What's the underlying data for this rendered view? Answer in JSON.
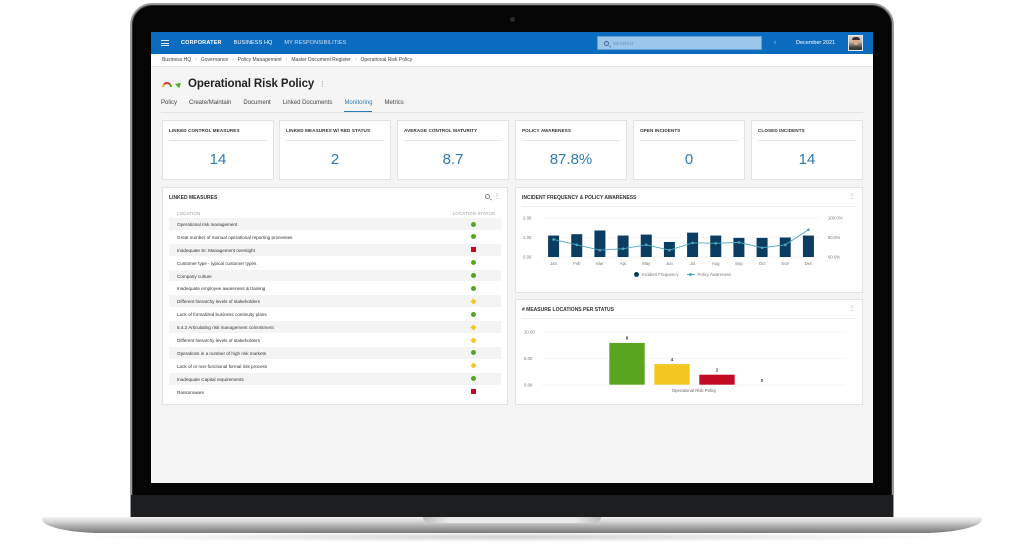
{
  "nav": {
    "brand": "CORPORATER",
    "links": [
      "BUSINESS HQ",
      "MY RESPONSIBILITIES"
    ],
    "search_placeholder": "SEARCH",
    "period": "December 2021",
    "prev_label": "‹",
    "next_label": "›"
  },
  "breadcrumb": [
    "Business HQ",
    "Governance",
    "Policy Management",
    "Master Document Register",
    "Operational Risk Policy"
  ],
  "page": {
    "title": "Operational Risk Policy",
    "menu_glyph": "⋮"
  },
  "tabs": [
    {
      "label": "Policy",
      "active": false
    },
    {
      "label": "Create/Maintain",
      "active": false
    },
    {
      "label": "Document",
      "active": false
    },
    {
      "label": "Linked Documents",
      "active": false
    },
    {
      "label": "Monitoring",
      "active": true
    },
    {
      "label": "Metrics",
      "active": false
    }
  ],
  "kpis": [
    {
      "label": "LINKED CONTROL MEASURES",
      "value": "14"
    },
    {
      "label": "LINKED MEASURES W/ RED STATUS",
      "value": "2"
    },
    {
      "label": "AVERAGE CONTROL MATURITY",
      "value": "8.7"
    },
    {
      "label": "POLICY AWARENESS",
      "value": "87.8%"
    },
    {
      "label": "OPEN INCIDENTS",
      "value": "0"
    },
    {
      "label": "CLOSED INCIDENTS",
      "value": "14"
    }
  ],
  "linked_measures": {
    "title": "LINKED MEASURES",
    "col_location": "LOCATION",
    "col_status": "LOCATION STATUS",
    "rows": [
      {
        "location": "Operational risk management",
        "status": "green"
      },
      {
        "location": "Great number of manual operational reporting processes",
        "status": "green"
      },
      {
        "location": "Inadequate Sr. Management oversight",
        "status": "red"
      },
      {
        "location": "Customer type - typical customer types",
        "status": "green"
      },
      {
        "location": "Company culture",
        "status": "green"
      },
      {
        "location": "Inadequate employee awareness & training",
        "status": "green"
      },
      {
        "location": "Different hierarchy levels of stakeholders",
        "status": "yellow"
      },
      {
        "location": "Lack of formalized business continuity plans",
        "status": "green"
      },
      {
        "location": "5.4.2 Articulating risk management commitment",
        "status": "yellow"
      },
      {
        "location": "Different hierarchy levels of stakeholders",
        "status": "yellow"
      },
      {
        "location": "Operations in a number of high risk markets",
        "status": "green"
      },
      {
        "location": "Lack of or non-functional formal risk process",
        "status": "yellow"
      },
      {
        "location": "Inadequate Capital requirements",
        "status": "green"
      },
      {
        "location": "Ransomware",
        "status": "red"
      }
    ]
  },
  "incident_panel": {
    "title": "INCIDENT FREQUENCY & POLICY AWARENESS",
    "legend": [
      "Incident Frequency",
      "Policy Awareness"
    ]
  },
  "status_panel": {
    "title": "# MEASURE LOCATIONS PER STATUS",
    "category_label": "Operational Risk Policy"
  },
  "colors": {
    "nav_blue": "#0b6cbf",
    "kpi_value": "#2e7ab6",
    "bar_navy": "#0b3d62",
    "line_teal": "#4ea7bf",
    "status_green": "#5aa520",
    "status_yellow": "#f3c622",
    "status_red": "#c30a25"
  },
  "chart_data": [
    {
      "type": "bar",
      "title": "INCIDENT FREQUENCY & POLICY AWARENESS",
      "categories": [
        "Jan",
        "Feb",
        "Mar",
        "Apr",
        "May",
        "Jun",
        "Jul",
        "Aug",
        "Sep",
        "Oct",
        "Nov",
        "Dec"
      ],
      "series": [
        {
          "name": "Incident Frequency",
          "type": "bar",
          "axis": "left",
          "values": [
            1.1,
            1.17,
            1.36,
            1.1,
            1.15,
            0.77,
            1.25,
            1.1,
            0.98,
            0.98,
            1.0,
            1.1
          ]
        },
        {
          "name": "Policy Awareness",
          "type": "line",
          "axis": "right",
          "values": [
            78.0,
            72.5,
            67.0,
            68.5,
            72.5,
            67.0,
            74.5,
            74.0,
            75.0,
            69.5,
            72.5,
            88.0
          ]
        }
      ],
      "y_left": {
        "ticks": [
          "0.00",
          "1.00",
          "2.00"
        ],
        "range": [
          0,
          2
        ]
      },
      "y_right": {
        "ticks": [
          "60.0%",
          "80.0%",
          "100.0%"
        ],
        "range": [
          60,
          100
        ]
      },
      "legend_position": "bottom",
      "grid": true
    },
    {
      "type": "bar",
      "title": "# MEASURE LOCATIONS PER STATUS",
      "categories": [
        "Operational Risk Policy"
      ],
      "series": [
        {
          "name": "Green",
          "color": "#5aa520",
          "values": [
            8
          ]
        },
        {
          "name": "Yellow",
          "color": "#f3c622",
          "values": [
            4
          ]
        },
        {
          "name": "Red",
          "color": "#c30a25",
          "values": [
            2
          ]
        },
        {
          "name": "None",
          "color": "#999999",
          "values": [
            0
          ]
        }
      ],
      "y_ticks": [
        "0.00",
        "5.00",
        "10.00"
      ],
      "ylim": [
        0,
        10
      ],
      "data_labels": [
        "8",
        "4",
        "2",
        "0"
      ],
      "grid": true
    }
  ]
}
